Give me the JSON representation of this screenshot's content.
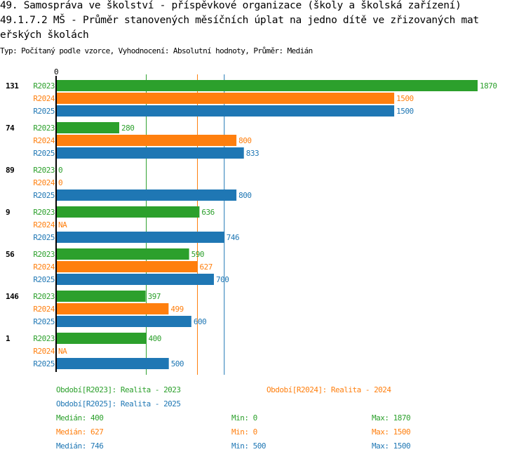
{
  "title_line1": "49. Samospráva ve školství - příspěvkové organizace (školy a školská zařízení)",
  "title_line2": "49.1.7.2 MŠ - Průměr stanovených měsíčních úplat na jedno dítě ve zřizovaných mat",
  "title_line3": "eřských školách",
  "subtitle": "Typ: Počítaný podle vzorce, Vyhodnocení: Absolutní hodnoty, Průměr: Medián",
  "colors": {
    "R2023": "#2ca02c",
    "R2024": "#ff7f0e",
    "R2025": "#1f77b4"
  },
  "chart_data": {
    "type": "bar",
    "orientation": "horizontal",
    "axis_zero_label": "0",
    "xlim": [
      0,
      1870
    ],
    "categories": [
      "131",
      "74",
      "89",
      "9",
      "56",
      "146",
      "1"
    ],
    "series": [
      {
        "name": "R2023",
        "values": [
          1870,
          280,
          0,
          636,
          590,
          397,
          400
        ],
        "labels": [
          "1870",
          "280",
          "0",
          "636",
          "590",
          "397",
          "400"
        ],
        "median": 400
      },
      {
        "name": "R2024",
        "values": [
          1500,
          800,
          0,
          null,
          627,
          499,
          null
        ],
        "labels": [
          "1500",
          "800",
          "0",
          "NA",
          "627",
          "499",
          "NA"
        ],
        "median": 627
      },
      {
        "name": "R2025",
        "values": [
          1500,
          833,
          800,
          746,
          700,
          600,
          500
        ],
        "labels": [
          "1500",
          "833",
          "800",
          "746",
          "700",
          "600",
          "500"
        ],
        "median": 746
      }
    ]
  },
  "legend": {
    "periods": [
      "Období[R2023]: Realita - 2023",
      "Období[R2024]: Realita - 2024",
      "Období[R2025]: Realita - 2025"
    ],
    "stats": [
      {
        "median": "Medián: 400",
        "min": "Min: 0",
        "max": "Max: 1870"
      },
      {
        "median": "Medián: 627",
        "min": "Min: 0",
        "max": "Max: 1500"
      },
      {
        "median": "Medián: 746",
        "min": "Min: 500",
        "max": "Max: 1500"
      }
    ]
  }
}
